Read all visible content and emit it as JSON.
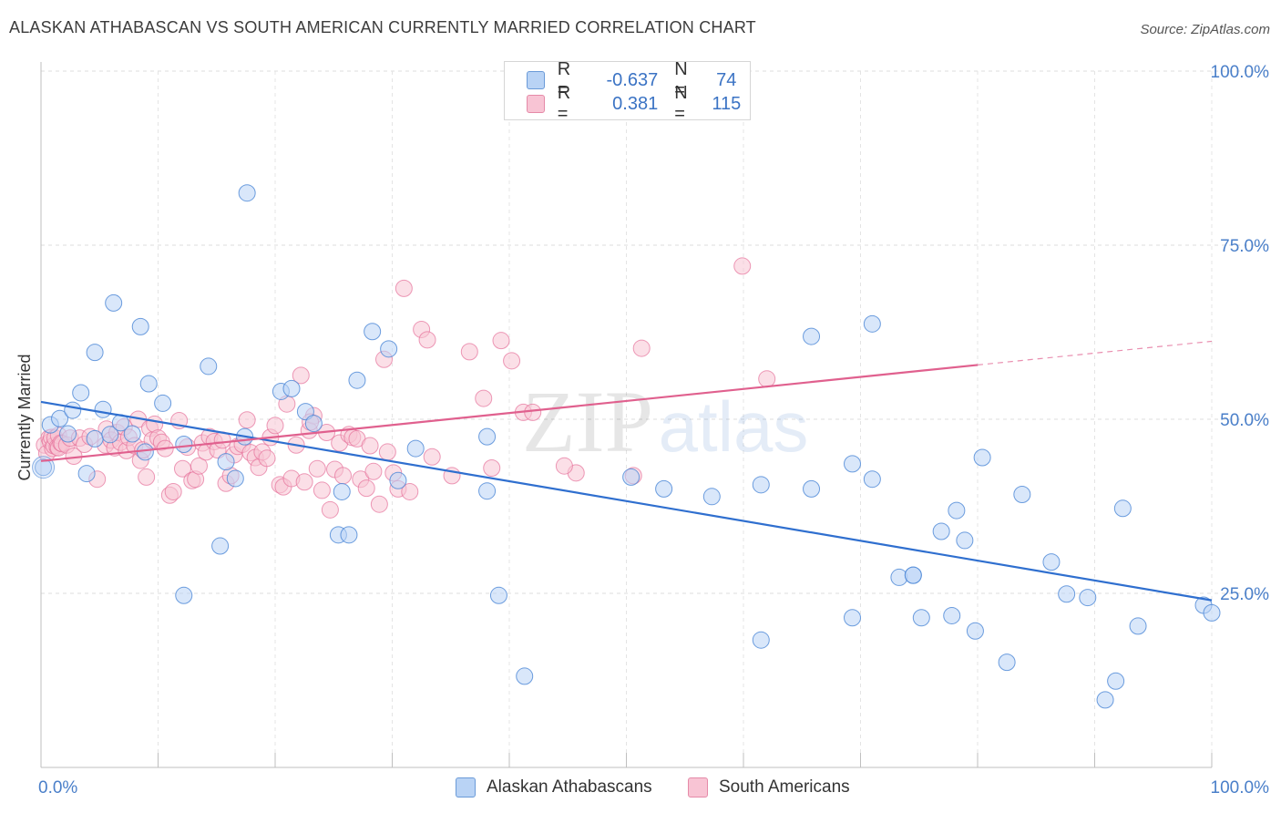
{
  "title": "ALASKAN ATHABASCAN VS SOUTH AMERICAN CURRENTLY MARRIED CORRELATION CHART",
  "source": "Source: ZipAtlas.com",
  "watermark": {
    "zip": "ZIP",
    "atlas": "atlas"
  },
  "legend_top": {
    "r_label": "R =",
    "n_label": "N =",
    "series": [
      {
        "r": "-0.637",
        "n": "74"
      },
      {
        "r": "0.381",
        "n": "115"
      }
    ]
  },
  "bottom_legend": [
    "Alaskan Athabascans",
    "South Americans"
  ],
  "chart_data": {
    "type": "scatter",
    "title": "ALASKAN ATHABASCAN VS SOUTH AMERICAN CURRENTLY MARRIED CORRELATION CHART",
    "xlabel": "",
    "ylabel": "Currently Married",
    "xlim": [
      0,
      100
    ],
    "ylim": [
      0,
      100
    ],
    "x_tick_labels": [
      "0.0%",
      "100.0%"
    ],
    "y_ticks": [
      25,
      50,
      75,
      100
    ],
    "y_tick_labels": [
      "25.0%",
      "50.0%",
      "75.0%",
      "100.0%"
    ],
    "grid": true,
    "colors": {
      "blue": "#4a86d6",
      "blue_fill": "#b9d3f5",
      "pink": "#e5719a",
      "pink_fill": "#f8c4d4"
    },
    "series": [
      {
        "name": "Alaskan Athabascans",
        "r": -0.637,
        "n": 74,
        "trend": {
          "x0": 0,
          "y0": 52.5,
          "x1": 100,
          "y1": 24.0
        },
        "points": [
          [
            0.2,
            43.1
          ],
          [
            0.8,
            49.2
          ],
          [
            1.6,
            50.1
          ],
          [
            2.3,
            47.9
          ],
          [
            2.7,
            51.3
          ],
          [
            3.4,
            53.8
          ],
          [
            3.9,
            42.2
          ],
          [
            4.6,
            47.2
          ],
          [
            4.6,
            59.6
          ],
          [
            5.3,
            51.4
          ],
          [
            5.9,
            47.8
          ],
          [
            6.2,
            66.7
          ],
          [
            6.8,
            49.5
          ],
          [
            7.8,
            47.9
          ],
          [
            8.5,
            63.3
          ],
          [
            9.2,
            55.1
          ],
          [
            8.9,
            45.3
          ],
          [
            10.4,
            52.3
          ],
          [
            12.2,
            46.4
          ],
          [
            12.2,
            24.7
          ],
          [
            14.3,
            57.6
          ],
          [
            15.3,
            31.8
          ],
          [
            15.8,
            43.9
          ],
          [
            16.6,
            41.5
          ],
          [
            17.4,
            47.5
          ],
          [
            17.6,
            82.5
          ],
          [
            20.5,
            54.0
          ],
          [
            21.4,
            54.4
          ],
          [
            22.6,
            51.1
          ],
          [
            23.3,
            49.4
          ],
          [
            25.4,
            33.4
          ],
          [
            25.7,
            39.6
          ],
          [
            26.3,
            33.4
          ],
          [
            27.0,
            55.6
          ],
          [
            28.3,
            62.6
          ],
          [
            29.7,
            60.1
          ],
          [
            30.5,
            41.2
          ],
          [
            32.0,
            45.8
          ],
          [
            38.1,
            39.7
          ],
          [
            38.1,
            47.5
          ],
          [
            39.1,
            24.7
          ],
          [
            41.3,
            13.1
          ],
          [
            50.4,
            41.7
          ],
          [
            53.2,
            40.0
          ],
          [
            57.3,
            38.9
          ],
          [
            61.5,
            40.6
          ],
          [
            61.5,
            18.3
          ],
          [
            65.8,
            40.0
          ],
          [
            65.8,
            61.9
          ],
          [
            69.3,
            21.5
          ],
          [
            69.3,
            43.6
          ],
          [
            71.0,
            41.4
          ],
          [
            71.0,
            63.7
          ],
          [
            73.3,
            27.3
          ],
          [
            74.5,
            27.6
          ],
          [
            74.5,
            27.6
          ],
          [
            75.2,
            21.5
          ],
          [
            76.9,
            33.9
          ],
          [
            77.8,
            21.8
          ],
          [
            78.2,
            36.9
          ],
          [
            78.9,
            32.6
          ],
          [
            79.8,
            19.6
          ],
          [
            80.4,
            44.5
          ],
          [
            82.5,
            15.1
          ],
          [
            83.8,
            39.2
          ],
          [
            86.3,
            29.5
          ],
          [
            87.6,
            24.9
          ],
          [
            89.4,
            24.4
          ],
          [
            90.9,
            9.7
          ],
          [
            91.8,
            12.4
          ],
          [
            92.4,
            37.2
          ],
          [
            93.7,
            20.3
          ],
          [
            99.3,
            23.3
          ],
          [
            100.0,
            22.2
          ]
        ]
      },
      {
        "name": "South Americans",
        "r": 0.381,
        "n": 115,
        "trend": {
          "x0": 0,
          "y0": 44.0,
          "x1": 80,
          "y1": 57.8,
          "dash_x1": 100,
          "dash_y1": 61.2
        },
        "points": [
          [
            0.3,
            46.3
          ],
          [
            0.5,
            45.1
          ],
          [
            0.7,
            47.3
          ],
          [
            0.8,
            46.8
          ],
          [
            0.9,
            47.4
          ],
          [
            1.0,
            45.8
          ],
          [
            1.1,
            46.2
          ],
          [
            1.2,
            47.3
          ],
          [
            1.4,
            46.0
          ],
          [
            1.5,
            45.9
          ],
          [
            1.5,
            47.7
          ],
          [
            1.7,
            46.6
          ],
          [
            1.8,
            46.5
          ],
          [
            2.2,
            46.3
          ],
          [
            2.5,
            47.3
          ],
          [
            2.8,
            44.7
          ],
          [
            3.3,
            47.3
          ],
          [
            3.7,
            46.4
          ],
          [
            4.2,
            47.5
          ],
          [
            4.8,
            41.4
          ],
          [
            5.5,
            46.3
          ],
          [
            5.6,
            48.6
          ],
          [
            6.0,
            47.0
          ],
          [
            6.3,
            45.9
          ],
          [
            6.5,
            48.1
          ],
          [
            6.8,
            46.7
          ],
          [
            7.1,
            48.9
          ],
          [
            7.3,
            45.5
          ],
          [
            7.5,
            47.4
          ],
          [
            8.0,
            46.2
          ],
          [
            8.3,
            50.0
          ],
          [
            8.5,
            44.1
          ],
          [
            8.7,
            45.6
          ],
          [
            9.0,
            41.7
          ],
          [
            9.3,
            48.7
          ],
          [
            9.5,
            47.0
          ],
          [
            9.7,
            49.3
          ],
          [
            10.0,
            47.3
          ],
          [
            10.3,
            46.7
          ],
          [
            10.6,
            45.8
          ],
          [
            11.0,
            39.1
          ],
          [
            11.3,
            39.6
          ],
          [
            11.8,
            49.8
          ],
          [
            12.1,
            42.9
          ],
          [
            12.5,
            46.0
          ],
          [
            12.9,
            41.2
          ],
          [
            13.2,
            41.4
          ],
          [
            13.5,
            43.3
          ],
          [
            13.8,
            46.6
          ],
          [
            14.1,
            45.3
          ],
          [
            14.4,
            47.5
          ],
          [
            14.8,
            46.8
          ],
          [
            15.1,
            45.6
          ],
          [
            15.5,
            47.0
          ],
          [
            15.8,
            40.8
          ],
          [
            16.2,
            41.9
          ],
          [
            16.5,
            44.9
          ],
          [
            16.8,
            46.1
          ],
          [
            17.2,
            46.4
          ],
          [
            17.6,
            49.9
          ],
          [
            17.9,
            45.2
          ],
          [
            18.3,
            44.5
          ],
          [
            18.6,
            43.1
          ],
          [
            18.9,
            45.3
          ],
          [
            19.3,
            44.4
          ],
          [
            19.6,
            47.4
          ],
          [
            20.0,
            49.1
          ],
          [
            20.4,
            40.6
          ],
          [
            20.7,
            40.3
          ],
          [
            21.0,
            52.2
          ],
          [
            21.4,
            41.5
          ],
          [
            21.8,
            46.3
          ],
          [
            22.2,
            56.3
          ],
          [
            22.5,
            41.0
          ],
          [
            22.9,
            48.4
          ],
          [
            23.3,
            50.5
          ],
          [
            23.6,
            42.9
          ],
          [
            24.0,
            39.8
          ],
          [
            24.4,
            48.1
          ],
          [
            24.7,
            37.0
          ],
          [
            25.1,
            42.8
          ],
          [
            25.5,
            46.6
          ],
          [
            25.8,
            41.9
          ],
          [
            26.3,
            47.8
          ],
          [
            26.6,
            47.4
          ],
          [
            27.0,
            47.2
          ],
          [
            27.3,
            41.4
          ],
          [
            27.8,
            40.1
          ],
          [
            28.1,
            46.2
          ],
          [
            28.4,
            42.5
          ],
          [
            28.9,
            37.8
          ],
          [
            29.3,
            58.6
          ],
          [
            29.6,
            45.3
          ],
          [
            30.1,
            42.3
          ],
          [
            30.5,
            40.0
          ],
          [
            31.0,
            68.8
          ],
          [
            31.5,
            39.6
          ],
          [
            32.5,
            62.9
          ],
          [
            33.0,
            61.4
          ],
          [
            35.1,
            41.9
          ],
          [
            36.6,
            59.7
          ],
          [
            37.8,
            53.0
          ],
          [
            38.5,
            43.0
          ],
          [
            39.3,
            61.3
          ],
          [
            40.2,
            58.4
          ],
          [
            41.2,
            51.0
          ],
          [
            42.0,
            51.0
          ],
          [
            50.6,
            41.9
          ],
          [
            51.3,
            60.2
          ],
          [
            59.9,
            72.0
          ],
          [
            62.0,
            55.8
          ],
          [
            45.7,
            42.3
          ],
          [
            33.4,
            44.6
          ],
          [
            44.7,
            43.3
          ],
          [
            23.0,
            49.6
          ]
        ]
      }
    ]
  }
}
